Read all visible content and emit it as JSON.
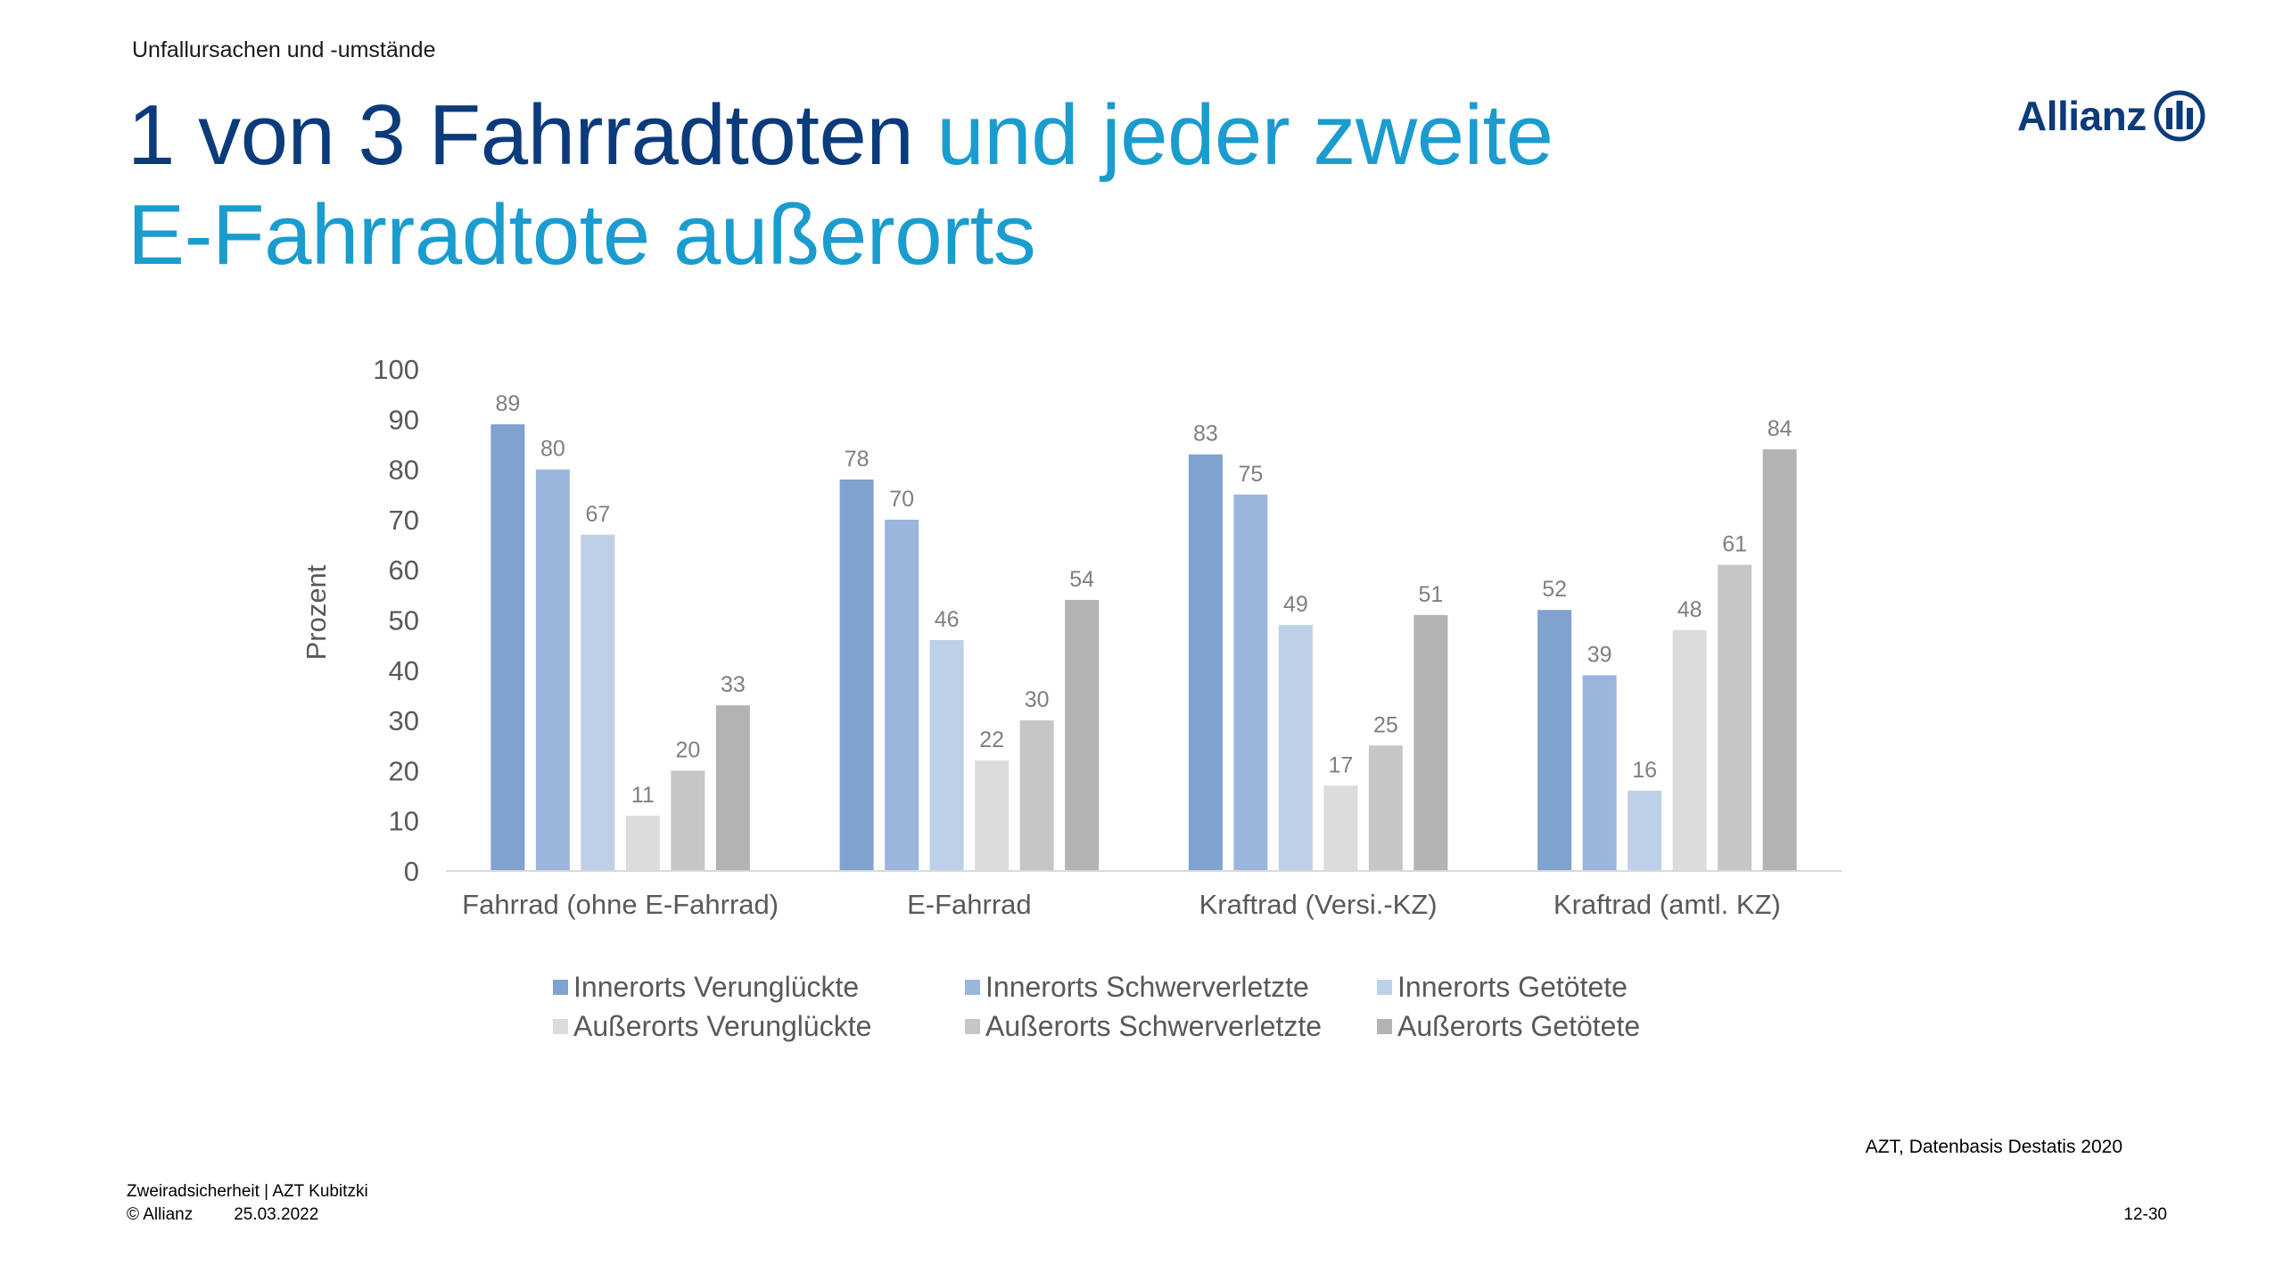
{
  "header": {
    "section": "Unfallursachen und -umstände",
    "title_dark": "1 von 3 Fahrradtoten ",
    "title_light_1": "und jeder zweite",
    "title_light_2": "E-Fahrradtote außerorts"
  },
  "logo": {
    "text": "Allianz",
    "icon": "allianz-eagle-icon"
  },
  "chart_data": {
    "type": "bar",
    "ylabel": "Prozent",
    "ylim": [
      0,
      100
    ],
    "yticks": [
      0,
      10,
      20,
      30,
      40,
      50,
      60,
      70,
      80,
      90,
      100
    ],
    "grid": false,
    "legend_position": "bottom",
    "categories": [
      "Fahrrad (ohne E-Fahrrad)",
      "E-Fahrrad",
      "Kraftrad (Versi.-KZ)",
      "Kraftrad (amtl. KZ)"
    ],
    "series": [
      {
        "name": "Innerorts Verunglückte",
        "color": "#7fa2cf",
        "values": [
          89,
          78,
          83,
          52
        ]
      },
      {
        "name": "Innerorts Schwerverletzte",
        "color": "#9bb6dc",
        "values": [
          80,
          70,
          75,
          39
        ]
      },
      {
        "name": "Innerorts Getötete",
        "color": "#bdd0e8",
        "values": [
          67,
          46,
          49,
          16
        ]
      },
      {
        "name": "Außerorts Verunglückte",
        "color": "#dcdcdc",
        "values": [
          11,
          22,
          17,
          48
        ]
      },
      {
        "name": "Außerorts Schwerverletzte",
        "color": "#c6c6c6",
        "values": [
          20,
          30,
          25,
          61
        ]
      },
      {
        "name": "Außerorts Getötete",
        "color": "#b3b3b3",
        "values": [
          33,
          54,
          51,
          84
        ]
      }
    ]
  },
  "footer": {
    "source": "AZT, Datenbasis Destatis 2020",
    "line1": "Zweiradsicherheit | AZT Kubitzki",
    "copyright": "© Allianz",
    "date": "25.03.2022",
    "page": "12-30"
  }
}
